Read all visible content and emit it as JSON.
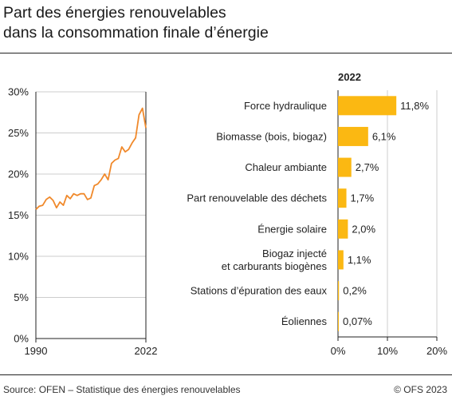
{
  "title_line1": "Part des énergies renouvelables",
  "title_line2": "dans la consommation finale d’énergie",
  "source": "Source: OFEN – Statistique des énergies renouvelables",
  "copyright": "© OFS 2023",
  "colors": {
    "line": "#f0892b",
    "bar": "#fbb812",
    "grid": "#cccccc",
    "axis": "#222222"
  },
  "chart_data": [
    {
      "type": "line",
      "title": "",
      "xlabel": "",
      "ylabel": "",
      "x_ticks": [
        "1990",
        "2022"
      ],
      "y_ticks": [
        "0%",
        "5%",
        "10%",
        "15%",
        "20%",
        "25%",
        "30%"
      ],
      "ylim": [
        0,
        30
      ],
      "xlim": [
        1990,
        2022
      ],
      "grid": "horizontal",
      "series": [
        {
          "values": [
            {
              "x": 1990,
              "y": 15.7
            },
            {
              "x": 1991,
              "y": 16.1
            },
            {
              "x": 1992,
              "y": 16.2
            },
            {
              "x": 1993,
              "y": 16.9
            },
            {
              "x": 1994,
              "y": 17.2
            },
            {
              "x": 1995,
              "y": 16.8
            },
            {
              "x": 1996,
              "y": 15.9
            },
            {
              "x": 1997,
              "y": 16.6
            },
            {
              "x": 1998,
              "y": 16.2
            },
            {
              "x": 1999,
              "y": 17.4
            },
            {
              "x": 2000,
              "y": 17.0
            },
            {
              "x": 2001,
              "y": 17.6
            },
            {
              "x": 2002,
              "y": 17.4
            },
            {
              "x": 2003,
              "y": 17.6
            },
            {
              "x": 2004,
              "y": 17.6
            },
            {
              "x": 2005,
              "y": 16.9
            },
            {
              "x": 2006,
              "y": 17.1
            },
            {
              "x": 2007,
              "y": 18.6
            },
            {
              "x": 2008,
              "y": 18.8
            },
            {
              "x": 2009,
              "y": 19.3
            },
            {
              "x": 2010,
              "y": 20.0
            },
            {
              "x": 2011,
              "y": 19.3
            },
            {
              "x": 2012,
              "y": 21.3
            },
            {
              "x": 2013,
              "y": 21.7
            },
            {
              "x": 2014,
              "y": 21.9
            },
            {
              "x": 2015,
              "y": 23.3
            },
            {
              "x": 2016,
              "y": 22.7
            },
            {
              "x": 2017,
              "y": 23.0
            },
            {
              "x": 2018,
              "y": 23.8
            },
            {
              "x": 2019,
              "y": 24.4
            },
            {
              "x": 2020,
              "y": 27.2
            },
            {
              "x": 2021,
              "y": 28.0
            },
            {
              "x": 2022,
              "y": 25.6
            }
          ]
        }
      ]
    },
    {
      "type": "bar",
      "orientation": "horizontal",
      "title": "2022",
      "xlim": [
        0,
        20
      ],
      "x_ticks": [
        "0%",
        "10%",
        "20%"
      ],
      "grid": "vertical",
      "categories": [
        [
          "Force hydraulique"
        ],
        [
          "Biomasse (bois, biogaz)"
        ],
        [
          "Chaleur ambiante"
        ],
        [
          "Part renouvelable des déchets"
        ],
        [
          "Énergie solaire"
        ],
        [
          "Biogaz injecté",
          "et carburants biogènes"
        ],
        [
          "Stations d’épuration des eaux"
        ],
        [
          "Éoliennes"
        ]
      ],
      "values": [
        11.8,
        6.1,
        2.7,
        1.7,
        2.0,
        1.1,
        0.2,
        0.07
      ],
      "value_labels": [
        "11,8%",
        "6,1%",
        "2,7%",
        "1,7%",
        "2,0%",
        "1,1%",
        "0,2%",
        "0,07%"
      ]
    }
  ]
}
